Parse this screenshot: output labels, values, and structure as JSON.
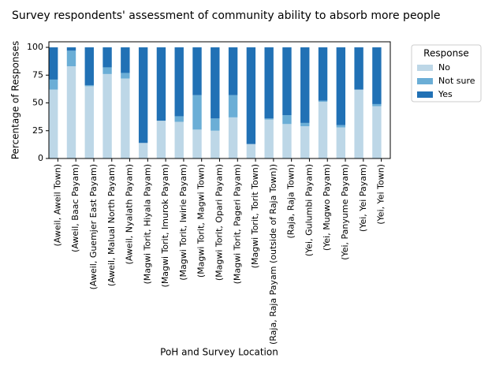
{
  "chart_data": {
    "type": "stacked_bar",
    "title": "Survey respondents' assessment of community ability to absorb more people",
    "x_label": "PoH and Survey Location",
    "y_label": "Percentage of Responses",
    "legend_title": "Response",
    "legend_position": "right",
    "categories": [
      "(Aweil, Aweil Town)",
      "(Aweil, Baac Payam)",
      "(Aweil, Guemjer East Payam)",
      "(Aweil, Malual North Payam)",
      "(Aweil, Nyalath Payam)",
      "(Magwi Torit, Hiyala Payam)",
      "(Magwi Torit, Imurok Payam)",
      "(Magwi Torit, Iwirie Payam)",
      "(Magwi Torit, Magwi Town)",
      "(Magwi Torit, Opari Payam)",
      "(Magwi Torit, Pageri Payam)",
      "(Magwi Torit, Torit Town)",
      "(Raja, Raja Payam (outside of Raja Town))",
      "(Raja, Raja Town)",
      "(Yei, Gulumbi Payam)",
      "(Yei, Mugwo Payam)",
      "(Yei, Panyume Payam)",
      "(Yei, Yei Payam)",
      "(Yei, Yei Town)"
    ],
    "series": [
      {
        "name": "No",
        "color": "#bdd7e7",
        "values": [
          62,
          83,
          65,
          76,
          72,
          14,
          34,
          33,
          26,
          25,
          37,
          13,
          35,
          31,
          29,
          51,
          28,
          62,
          47
        ]
      },
      {
        "name": "Not sure",
        "color": "#6baed6",
        "values": [
          9,
          14,
          1,
          6,
          5,
          0,
          0,
          5,
          31,
          11,
          20,
          0,
          1,
          8,
          3,
          1,
          2,
          0,
          2
        ]
      },
      {
        "name": "Yes",
        "color": "#2171b5",
        "values": [
          29,
          3,
          34,
          18,
          23,
          86,
          66,
          62,
          43,
          64,
          43,
          87,
          64,
          61,
          68,
          48,
          70,
          38,
          51
        ]
      }
    ],
    "ylim": [
      0,
      105
    ],
    "yticks": [
      0,
      25,
      50,
      75,
      100
    ]
  }
}
